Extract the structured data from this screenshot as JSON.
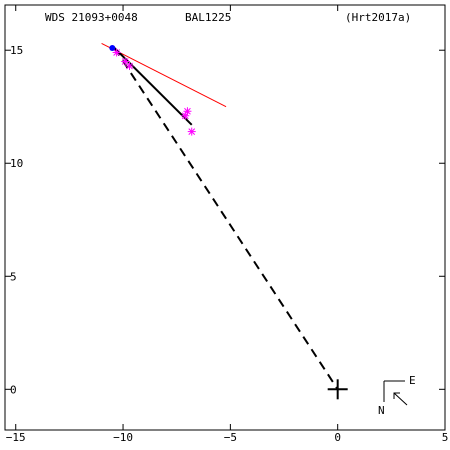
{
  "header": {
    "wds_id": "WDS 21093+0048",
    "discoverer": "BAL1225",
    "reference": "(Hrt2017a)"
  },
  "compass": {
    "east_label": "E",
    "north_label": "N"
  },
  "colors": {
    "axes": "#000000",
    "orbit": "#000000",
    "trend_line": "#ff0000",
    "observations": "#ff00ff",
    "first_point": "#0000ff",
    "background": "#ffffff"
  },
  "chart_data": {
    "type": "scatter",
    "title": "",
    "xlabel": "",
    "ylabel": "",
    "xlim": [
      -15.5,
      5.0
    ],
    "ylim": [
      -1.8,
      17.0
    ],
    "x_ticks": [
      -15,
      -10,
      -5,
      0,
      5
    ],
    "y_ticks": [
      0,
      5,
      10,
      15
    ],
    "x_tick_labels": [
      "−15",
      "−10",
      "−5",
      "0",
      "5"
    ],
    "y_tick_labels": [
      "0",
      "5",
      "10",
      "15"
    ],
    "primary_star": [
      0,
      0
    ],
    "orbit_arc": [
      [
        -10.4,
        15.1
      ],
      [
        -6.8,
        11.7
      ]
    ],
    "node_line": [
      [
        -10.4,
        15.1
      ],
      [
        0,
        0
      ]
    ],
    "trend_line": [
      [
        -11.0,
        15.3
      ],
      [
        -5.2,
        12.5
      ]
    ],
    "observations": [
      {
        "x": -10.3,
        "y": 14.9
      },
      {
        "x": -9.9,
        "y": 14.5
      },
      {
        "x": -9.7,
        "y": 14.3
      },
      {
        "x": -7.0,
        "y": 12.3
      },
      {
        "x": -7.1,
        "y": 12.1
      },
      {
        "x": -6.8,
        "y": 11.4
      }
    ],
    "first_point": {
      "x": -10.5,
      "y": 15.1
    },
    "grid": false
  }
}
